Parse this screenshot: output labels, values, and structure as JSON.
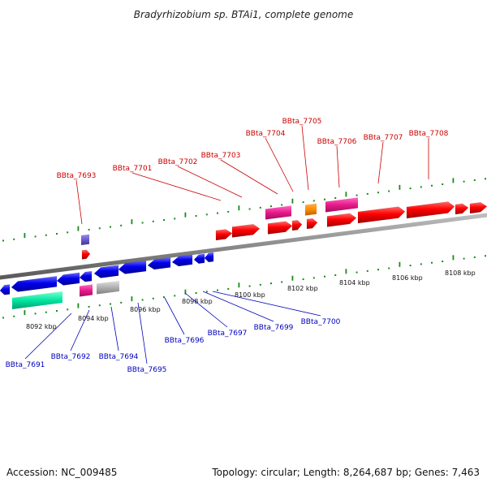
{
  "title": "Bradyrhizobium sp. BTAi1, complete genome",
  "footer": {
    "accession": "Accession: NC_009485",
    "summary": "Topology: circular; Length: 8,264,687 bp; Genes: 7,463"
  },
  "colors": {
    "backbone": "#8a8a8a",
    "tick_green": "#1a8a1a",
    "forward_label": "#cc0000",
    "reverse_label": "#0000bb"
  },
  "axis_ticks": [
    "8092 kbp",
    "8094 kbp",
    "8096 kbp",
    "8098 kbp",
    "8100 kbp",
    "8102 kbp",
    "8104 kbp",
    "8106 kbp",
    "8108 kbp"
  ],
  "forward_genes": [
    {
      "label": "BBta_7693",
      "color": "#ff0000"
    },
    {
      "label": "BBta_7701",
      "color": "#ff0000"
    },
    {
      "label": "BBta_7702",
      "color": "#ff0000"
    },
    {
      "label": "BBta_7703",
      "color": "#ff0000"
    },
    {
      "label": "BBta_7704",
      "color": "#ff0000"
    },
    {
      "label": "BBta_7705",
      "color": "#ff0000"
    },
    {
      "label": "BBta_7706",
      "color": "#ff0000"
    },
    {
      "label": "BBta_7707",
      "color": "#ff0000"
    },
    {
      "label": "BBta_7708",
      "color": "#ff0000"
    }
  ],
  "reverse_genes": [
    {
      "label": "BBta_7691",
      "color": "#0000ee"
    },
    {
      "label": "BBta_7692",
      "color": "#0000ee"
    },
    {
      "label": "BBta_7694",
      "color": "#0000ee"
    },
    {
      "label": "BBta_7695",
      "color": "#0000ee"
    },
    {
      "label": "BBta_7696",
      "color": "#0000ee"
    },
    {
      "label": "BBta_7697",
      "color": "#0000ee"
    },
    {
      "label": "BBta_7699",
      "color": "#0000ee"
    },
    {
      "label": "BBta_7700",
      "color": "#0000ee"
    }
  ],
  "feature_blocks": [
    {
      "kind": "forward-feature",
      "color": "#e8198b"
    },
    {
      "kind": "forward-feature",
      "color": "#e8198b"
    },
    {
      "kind": "forward-feature",
      "color": "#ff8c00"
    },
    {
      "kind": "forward-feature",
      "color": "#6a5acd"
    },
    {
      "kind": "reverse-feature",
      "color": "#00e5a0"
    },
    {
      "kind": "reverse-feature",
      "color": "#e8198b"
    },
    {
      "kind": "reverse-feature",
      "color": "#b0b0b0"
    }
  ]
}
